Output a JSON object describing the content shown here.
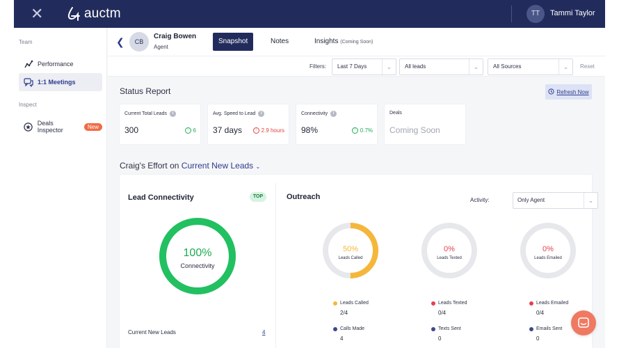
{
  "app": {
    "brand": "auctm",
    "user_initials": "TT",
    "user_name": "Tammi Taylor"
  },
  "sidebar": {
    "sections": [
      {
        "label": "Team",
        "items": [
          {
            "label": "Performance"
          },
          {
            "label": "1:1 Meetings"
          }
        ]
      },
      {
        "label": "Inspect",
        "items": [
          {
            "label": "Deals Inspector",
            "badge": "New"
          }
        ]
      }
    ]
  },
  "agent": {
    "initials": "CB",
    "name": "Craig Bowen",
    "role": "Agent"
  },
  "tabs": [
    {
      "label": "Snapshot"
    },
    {
      "label": "Notes"
    },
    {
      "label": "Insights",
      "suffix": "(Coming Soon)"
    }
  ],
  "filters": {
    "label": "Filters:",
    "date": "Last 7 Days",
    "leads": "All leads",
    "sources": "All Sources",
    "reset": "Reset"
  },
  "status_report": {
    "title": "Status Report",
    "refresh": "Refresh Now",
    "cards": [
      {
        "label": "Current Total Leads",
        "value": "300",
        "delta": "6",
        "trend": "up"
      },
      {
        "label": "Avg. Speed to Lead",
        "value": "37 days",
        "delta": "2.9 hours",
        "trend": "down"
      },
      {
        "label": "Connectivity",
        "value": "98%",
        "delta": "0.7%",
        "trend": "up"
      },
      {
        "label": "Deals",
        "value": "Coming Soon",
        "delta": "",
        "trend": "none"
      }
    ]
  },
  "effort": {
    "prefix": "Craig's Effort on",
    "scope": "Current New Leads"
  },
  "lead_connectivity": {
    "title": "Lead Connectivity",
    "badge": "TOP",
    "percent_text": "100%",
    "percent": 100,
    "label": "Connectivity",
    "current_new_leads_label": "Current New Leads",
    "current_new_leads_value": "4"
  },
  "outreach": {
    "title": "Outreach",
    "activity_label": "Activity:",
    "activity_value": "Only Agent",
    "rings": [
      {
        "percent_text": "50%",
        "percent": 50,
        "label": "Leads Called",
        "color": "#f5b73b",
        "legend": [
          {
            "label": "Leads Called",
            "value": "2/4",
            "color": "#f5b73b"
          },
          {
            "label": "Calls Made",
            "value": "4",
            "color": "#3d4a8a"
          }
        ]
      },
      {
        "percent_text": "0%",
        "percent": 0,
        "label": "Leads Texted",
        "color": "#e3414f",
        "legend": [
          {
            "label": "Leads Texted",
            "value": "0/4",
            "color": "#e3414f"
          },
          {
            "label": "Texts Sent",
            "value": "0",
            "color": "#3d4a8a"
          }
        ]
      },
      {
        "percent_text": "0%",
        "percent": 0,
        "label": "Leads Emailed",
        "color": "#e3414f",
        "legend": [
          {
            "label": "Leads Emailed",
            "value": "0/4",
            "color": "#e3414f"
          },
          {
            "label": "Emails Sent",
            "value": "0",
            "color": "#3d4a8a"
          }
        ]
      }
    ]
  }
}
